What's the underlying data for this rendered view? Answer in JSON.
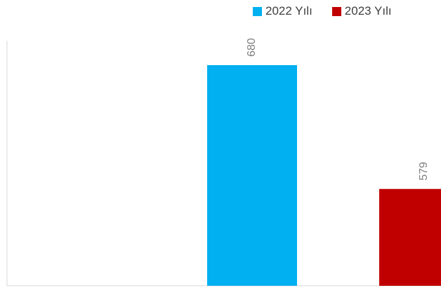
{
  "chart_data": {
    "type": "bar",
    "series": [
      {
        "name": "2022 Yılı",
        "value": 680,
        "color": "#00B0F0"
      },
      {
        "name": "2023 Yılı",
        "value": 579,
        "color": "#C00000"
      }
    ],
    "ylim": [
      500,
      700
    ],
    "grid": false,
    "legend_position": "top-right"
  }
}
